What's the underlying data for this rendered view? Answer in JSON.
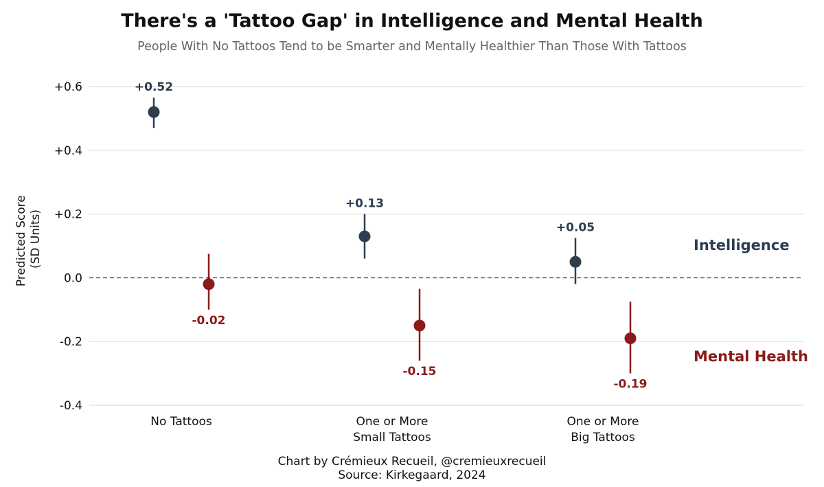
{
  "chart_data": {
    "type": "scatter",
    "title": "There's a 'Tattoo Gap' in Intelligence and Mental Health",
    "subtitle": "People With No Tattoos Tend to be Smarter and Mentally Healthier Than Those With Tattoos",
    "ylabel": [
      "Predicted Score",
      "(SD Units)"
    ],
    "xlabel": "",
    "ylim": [
      -0.4,
      0.6
    ],
    "yticks": [
      -0.4,
      -0.2,
      0.0,
      0.2,
      0.4,
      0.6
    ],
    "ytick_labels": [
      "-0.4",
      "-0.2",
      "0.0",
      "+0.2",
      "+0.4",
      "+0.6"
    ],
    "grid": "horizontal",
    "reference_line": {
      "y": 0,
      "style": "dashed"
    },
    "categories": [
      [
        "No Tattoos"
      ],
      [
        "One or More",
        "Small Tattoos"
      ],
      [
        "One or More",
        "Big Tattoos"
      ]
    ],
    "series": [
      {
        "name": "Intelligence",
        "color": "#2c3e50",
        "values": [
          0.52,
          0.13,
          0.05
        ],
        "lower": [
          0.47,
          0.06,
          -0.02
        ],
        "upper": [
          0.565,
          0.2,
          0.125
        ],
        "value_labels": [
          "+0.52",
          "+0.13",
          "+0.05"
        ],
        "label_position": "above"
      },
      {
        "name": "Mental Health",
        "color": "#8b1a1a",
        "values": [
          -0.02,
          -0.15,
          -0.19
        ],
        "lower": [
          -0.1,
          -0.26,
          -0.3
        ],
        "upper": [
          0.075,
          -0.035,
          -0.075
        ],
        "value_labels": [
          "-0.02",
          "-0.15",
          "-0.19"
        ],
        "label_position": "below"
      }
    ],
    "series_label_placement": "right",
    "caption": [
      "Chart by Crémieux Recueil, @cremieuxrecueil",
      "Source: Kirkegaard, 2024"
    ]
  }
}
